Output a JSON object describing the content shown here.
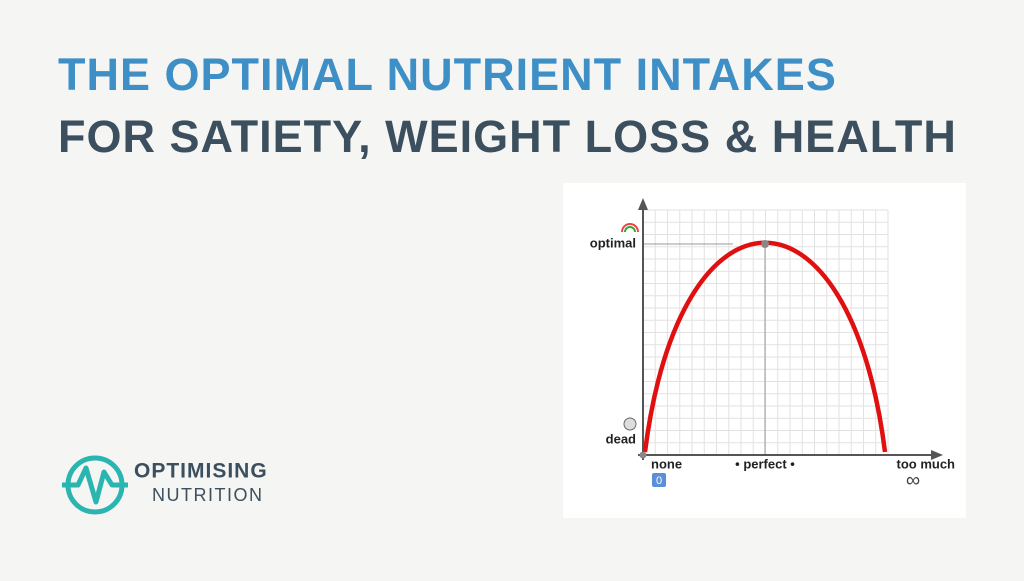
{
  "header": {
    "title": "THE OPTIMAL NUTRIENT INTAKES",
    "subtitle": "FOR SATIETY, WEIGHT LOSS & HEALTH"
  },
  "logo": {
    "line1": "OPTIMISING",
    "line2": "NUTRITION"
  },
  "diagram": {
    "y_top_label": "optimal",
    "y_bottom_label": "dead",
    "x_left_label": "none",
    "x_middle_label": "• perfect •",
    "x_right_label": "too much",
    "x_left_symbol": "0",
    "x_right_symbol": "∞"
  }
}
